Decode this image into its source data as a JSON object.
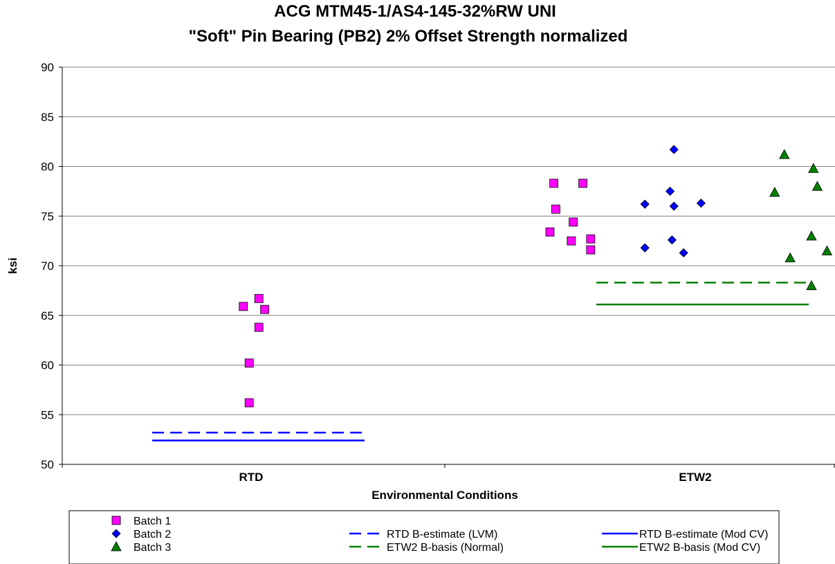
{
  "chart_data": {
    "type": "scatter",
    "title": "ACG MTM45-1/AS4-145-32%RW UNI",
    "subtitle": "\"Soft\" Pin Bearing (PB2) 2% Offset Strength normalized",
    "xlabel": "Environmental Conditions",
    "ylabel": "ksi",
    "categories": [
      "RTD",
      "ETW2"
    ],
    "ylim": [
      50,
      90
    ],
    "yticks": [
      50,
      55,
      60,
      65,
      70,
      75,
      80,
      85,
      90
    ],
    "grid": true,
    "legend_position": "bottom",
    "series": [
      {
        "name": "Batch 1",
        "marker": "square",
        "color": "#FF00FF",
        "points": [
          {
            "category": "RTD",
            "offset": -0.04,
            "y": 65.9
          },
          {
            "category": "RTD",
            "offset": 0.04,
            "y": 66.7
          },
          {
            "category": "RTD",
            "offset": 0.07,
            "y": 65.6
          },
          {
            "category": "RTD",
            "offset": 0.04,
            "y": 63.8
          },
          {
            "category": "RTD",
            "offset": -0.01,
            "y": 60.2
          },
          {
            "category": "RTD",
            "offset": -0.01,
            "y": 56.2
          },
          {
            "category": "ETW2",
            "offset": -0.73,
            "y": 78.3
          },
          {
            "category": "ETW2",
            "offset": -0.58,
            "y": 78.3
          },
          {
            "category": "ETW2",
            "offset": -0.72,
            "y": 75.7
          },
          {
            "category": "ETW2",
            "offset": -0.63,
            "y": 74.4
          },
          {
            "category": "ETW2",
            "offset": -0.75,
            "y": 73.4
          },
          {
            "category": "ETW2",
            "offset": -0.64,
            "y": 72.5
          },
          {
            "category": "ETW2",
            "offset": -0.54,
            "y": 72.7
          },
          {
            "category": "ETW2",
            "offset": -0.54,
            "y": 71.6
          }
        ]
      },
      {
        "name": "Batch 2",
        "marker": "diamond",
        "color": "#0000FF",
        "points": [
          {
            "category": "ETW2",
            "offset": -0.11,
            "y": 81.7
          },
          {
            "category": "ETW2",
            "offset": -0.13,
            "y": 77.5
          },
          {
            "category": "ETW2",
            "offset": -0.26,
            "y": 76.2
          },
          {
            "category": "ETW2",
            "offset": -0.11,
            "y": 76.0
          },
          {
            "category": "ETW2",
            "offset": 0.03,
            "y": 76.3
          },
          {
            "category": "ETW2",
            "offset": -0.12,
            "y": 72.6
          },
          {
            "category": "ETW2",
            "offset": -0.26,
            "y": 71.8
          },
          {
            "category": "ETW2",
            "offset": -0.06,
            "y": 71.3
          }
        ]
      },
      {
        "name": "Batch 3",
        "marker": "triangle",
        "color": "#008000",
        "points": [
          {
            "category": "ETW2",
            "offset": 0.46,
            "y": 81.2
          },
          {
            "category": "ETW2",
            "offset": 0.61,
            "y": 79.8
          },
          {
            "category": "ETW2",
            "offset": 0.63,
            "y": 78.0
          },
          {
            "category": "ETW2",
            "offset": 0.41,
            "y": 77.4
          },
          {
            "category": "ETW2",
            "offset": 0.6,
            "y": 73.0
          },
          {
            "category": "ETW2",
            "offset": 0.68,
            "y": 71.5
          },
          {
            "category": "ETW2",
            "offset": 0.49,
            "y": 70.8
          },
          {
            "category": "ETW2",
            "offset": 0.6,
            "y": 68.0
          }
        ]
      }
    ],
    "reference_lines": [
      {
        "name": "RTD B-estimate (LVM)",
        "category": "RTD",
        "y": 53.2,
        "style": "dashed",
        "color": "#0000FF"
      },
      {
        "name": "RTD B-estimate (Mod CV)",
        "category": "RTD",
        "y": 52.4,
        "style": "solid",
        "color": "#0000FF"
      },
      {
        "name": "ETW2 B-basis (Normal)",
        "category": "ETW2",
        "y": 68.3,
        "style": "dashed",
        "color": "#008000"
      },
      {
        "name": "ETW2 B-basis (Mod CV)",
        "category": "ETW2",
        "y": 66.1,
        "style": "solid",
        "color": "#008000"
      }
    ]
  }
}
